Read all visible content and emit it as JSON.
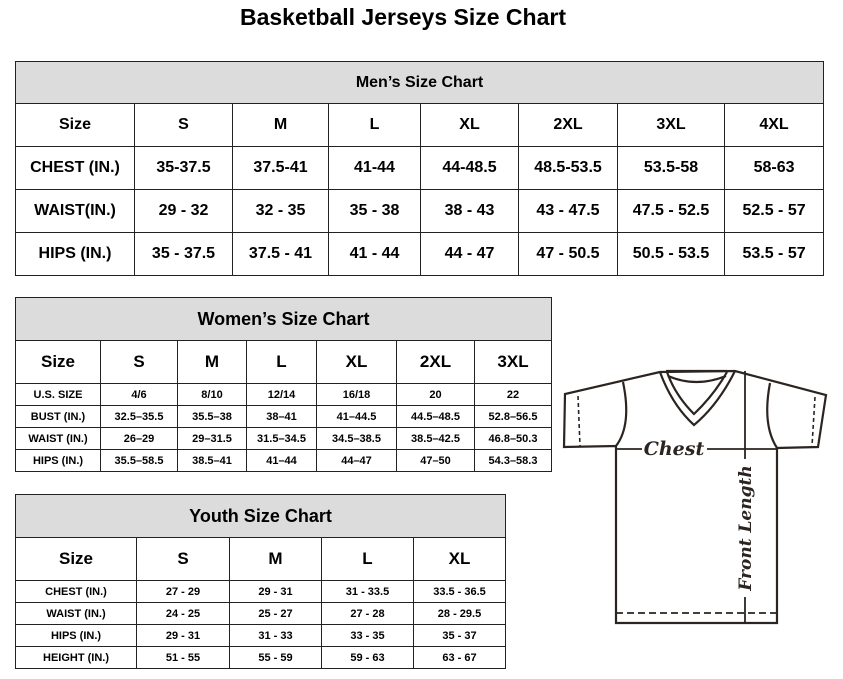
{
  "title": "Basketball Jerseys Size Chart",
  "men": {
    "caption": "Men’s Size Chart",
    "header": [
      "Size",
      "S",
      "M",
      "L",
      "XL",
      "2XL",
      "3XL",
      "4XL"
    ],
    "rows": [
      [
        "CHEST (IN.)",
        "35-37.5",
        "37.5-41",
        "41-44",
        "44-48.5",
        "48.5-53.5",
        "53.5-58",
        "58-63"
      ],
      [
        "WAIST(IN.)",
        "29 - 32",
        "32 - 35",
        "35 - 38",
        "38 - 43",
        "43 - 47.5",
        "47.5 - 52.5",
        "52.5 - 57"
      ],
      [
        "HIPS (IN.)",
        "35 - 37.5",
        "37.5 - 41",
        "41 - 44",
        "44 - 47",
        "47 - 50.5",
        "50.5 - 53.5",
        "53.5 - 57"
      ]
    ]
  },
  "women": {
    "caption": "Women’s Size Chart",
    "header": [
      "Size",
      "S",
      "M",
      "L",
      "XL",
      "2XL",
      "3XL"
    ],
    "rows": [
      [
        "U.S. SIZE",
        "4/6",
        "8/10",
        "12/14",
        "16/18",
        "20",
        "22"
      ],
      [
        "BUST (IN.)",
        "32.5–35.5",
        "35.5–38",
        "38–41",
        "41–44.5",
        "44.5–48.5",
        "52.8–56.5"
      ],
      [
        "WAIST (IN.)",
        "26–29",
        "29–31.5",
        "31.5–34.5",
        "34.5–38.5",
        "38.5–42.5",
        "46.8–50.3"
      ],
      [
        "HIPS (IN.)",
        "35.5–58.5",
        "38.5–41",
        "41–44",
        "44–47",
        "47–50",
        "54.3–58.3"
      ]
    ]
  },
  "youth": {
    "caption": "Youth Size Chart",
    "header": [
      "Size",
      "S",
      "M",
      "L",
      "XL"
    ],
    "rows": [
      [
        "CHEST (IN.)",
        "27 - 29",
        "29 - 31",
        "31 - 33.5",
        "33.5 - 36.5"
      ],
      [
        "WAIST (IN.)",
        "24 - 25",
        "25 - 27",
        "27 - 28",
        "28 - 29.5"
      ],
      [
        "HIPS (IN.)",
        "29 - 31",
        "31 - 33",
        "33 - 35",
        "35 - 37"
      ],
      [
        "HEIGHT (IN.)",
        "51 - 55",
        "55 - 59",
        "59 - 63",
        "63 - 67"
      ]
    ]
  },
  "diagram": {
    "chest_label": "Chest",
    "length_label": "Front Length"
  },
  "colors": {
    "caption_bg": "#dcdcdc",
    "line": "#2b2421"
  }
}
